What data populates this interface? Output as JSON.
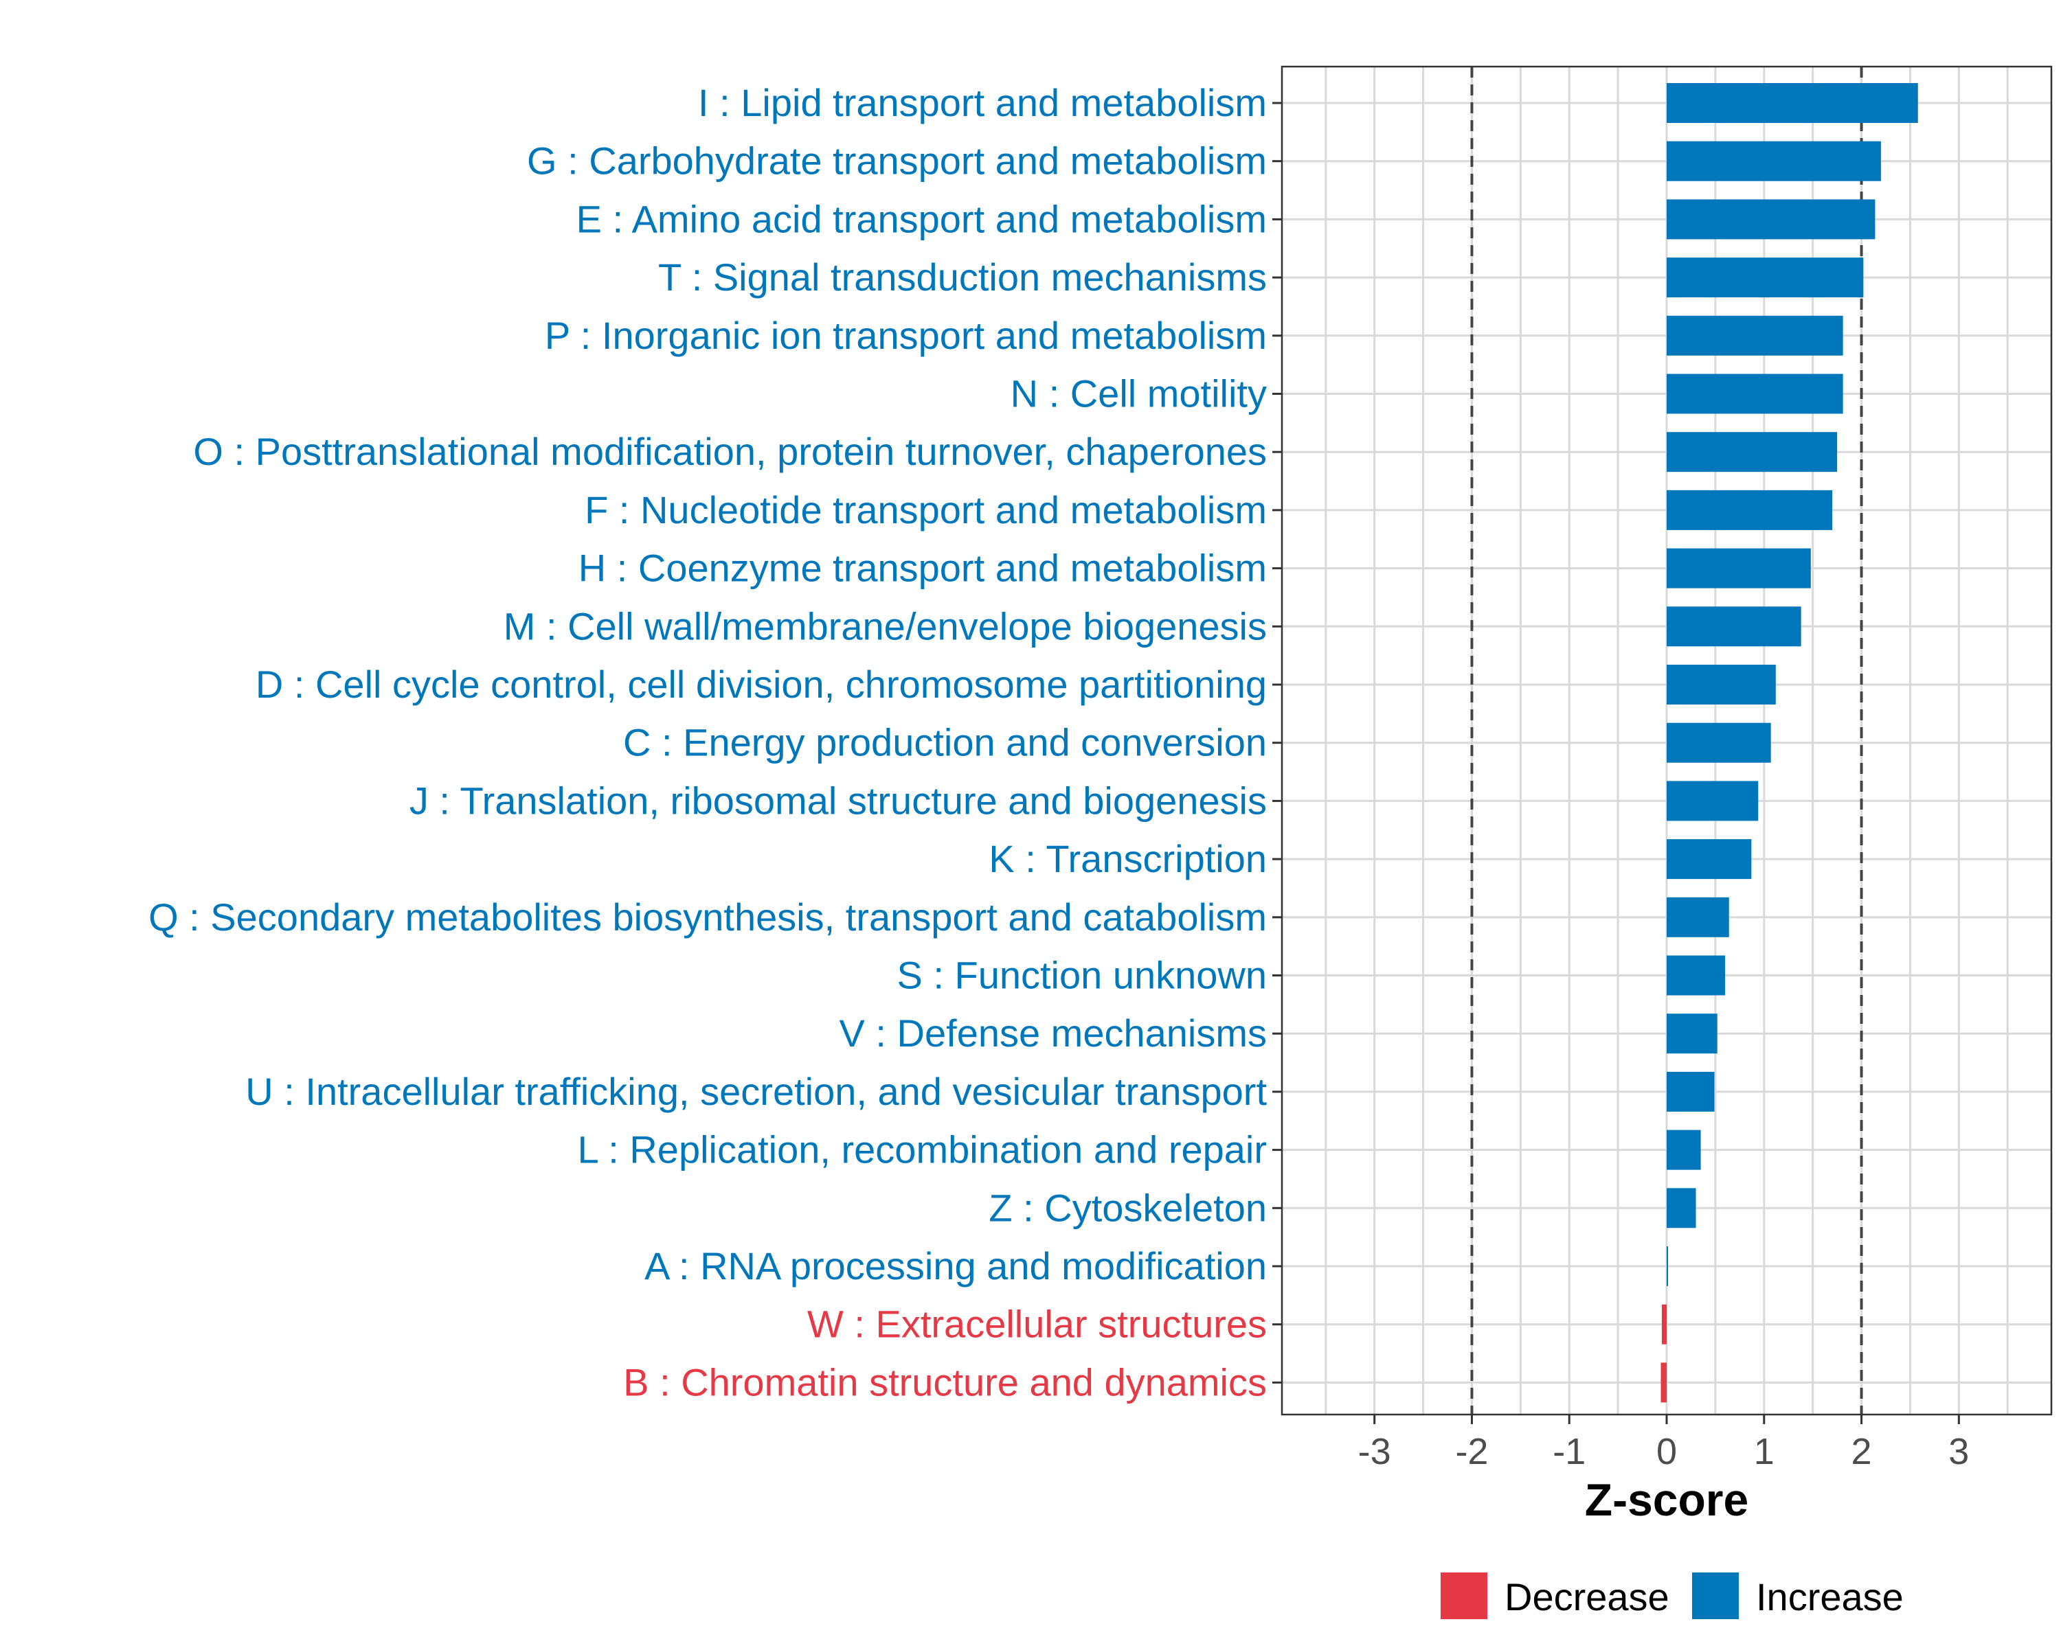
{
  "chart_data": {
    "type": "bar",
    "orientation": "horizontal",
    "categories": [
      "I : Lipid transport and metabolism",
      "G : Carbohydrate transport and metabolism",
      "E : Amino acid transport and metabolism",
      "T : Signal transduction mechanisms",
      "P : Inorganic ion transport and metabolism",
      "N : Cell motility",
      "O : Posttranslational modification, protein turnover, chaperones",
      "F : Nucleotide transport and metabolism",
      "H : Coenzyme transport and metabolism",
      "M : Cell wall/membrane/envelope biogenesis",
      "D : Cell cycle control, cell division, chromosome partitioning",
      "C : Energy production and conversion",
      "J : Translation, ribosomal structure and biogenesis",
      "K : Transcription",
      "Q : Secondary metabolites biosynthesis, transport and catabolism",
      "S : Function unknown",
      "V : Defense mechanisms",
      "U : Intracellular trafficking, secretion, and vesicular transport",
      "L : Replication, recombination and repair",
      "Z : Cytoskeleton",
      "A : RNA processing and modification",
      "W : Extracellular structures",
      "B : Chromatin structure and dynamics"
    ],
    "values": [
      2.58,
      2.2,
      2.14,
      2.02,
      1.81,
      1.81,
      1.75,
      1.7,
      1.48,
      1.38,
      1.12,
      1.07,
      0.94,
      0.87,
      0.64,
      0.6,
      0.52,
      0.49,
      0.35,
      0.3,
      0.01,
      -0.05,
      -0.06
    ],
    "xlabel": "Z-score",
    "ylabel": "",
    "xlim": [
      -3.95,
      3.95
    ],
    "xticks": [
      -3,
      -2,
      -1,
      0,
      1,
      2,
      3
    ],
    "xtick_labels": [
      "-3",
      "-2",
      "-1",
      "0",
      "1",
      "2",
      "3"
    ],
    "reference_lines": [
      -2,
      2
    ],
    "grid": true,
    "legend": {
      "position": "bottom",
      "items": [
        {
          "label": "Decrease",
          "color": "#E63946"
        },
        {
          "label": "Increase",
          "color": "#0077BB"
        }
      ]
    },
    "colors": {
      "increase": "#0077BB",
      "decrease": "#E63946"
    }
  }
}
